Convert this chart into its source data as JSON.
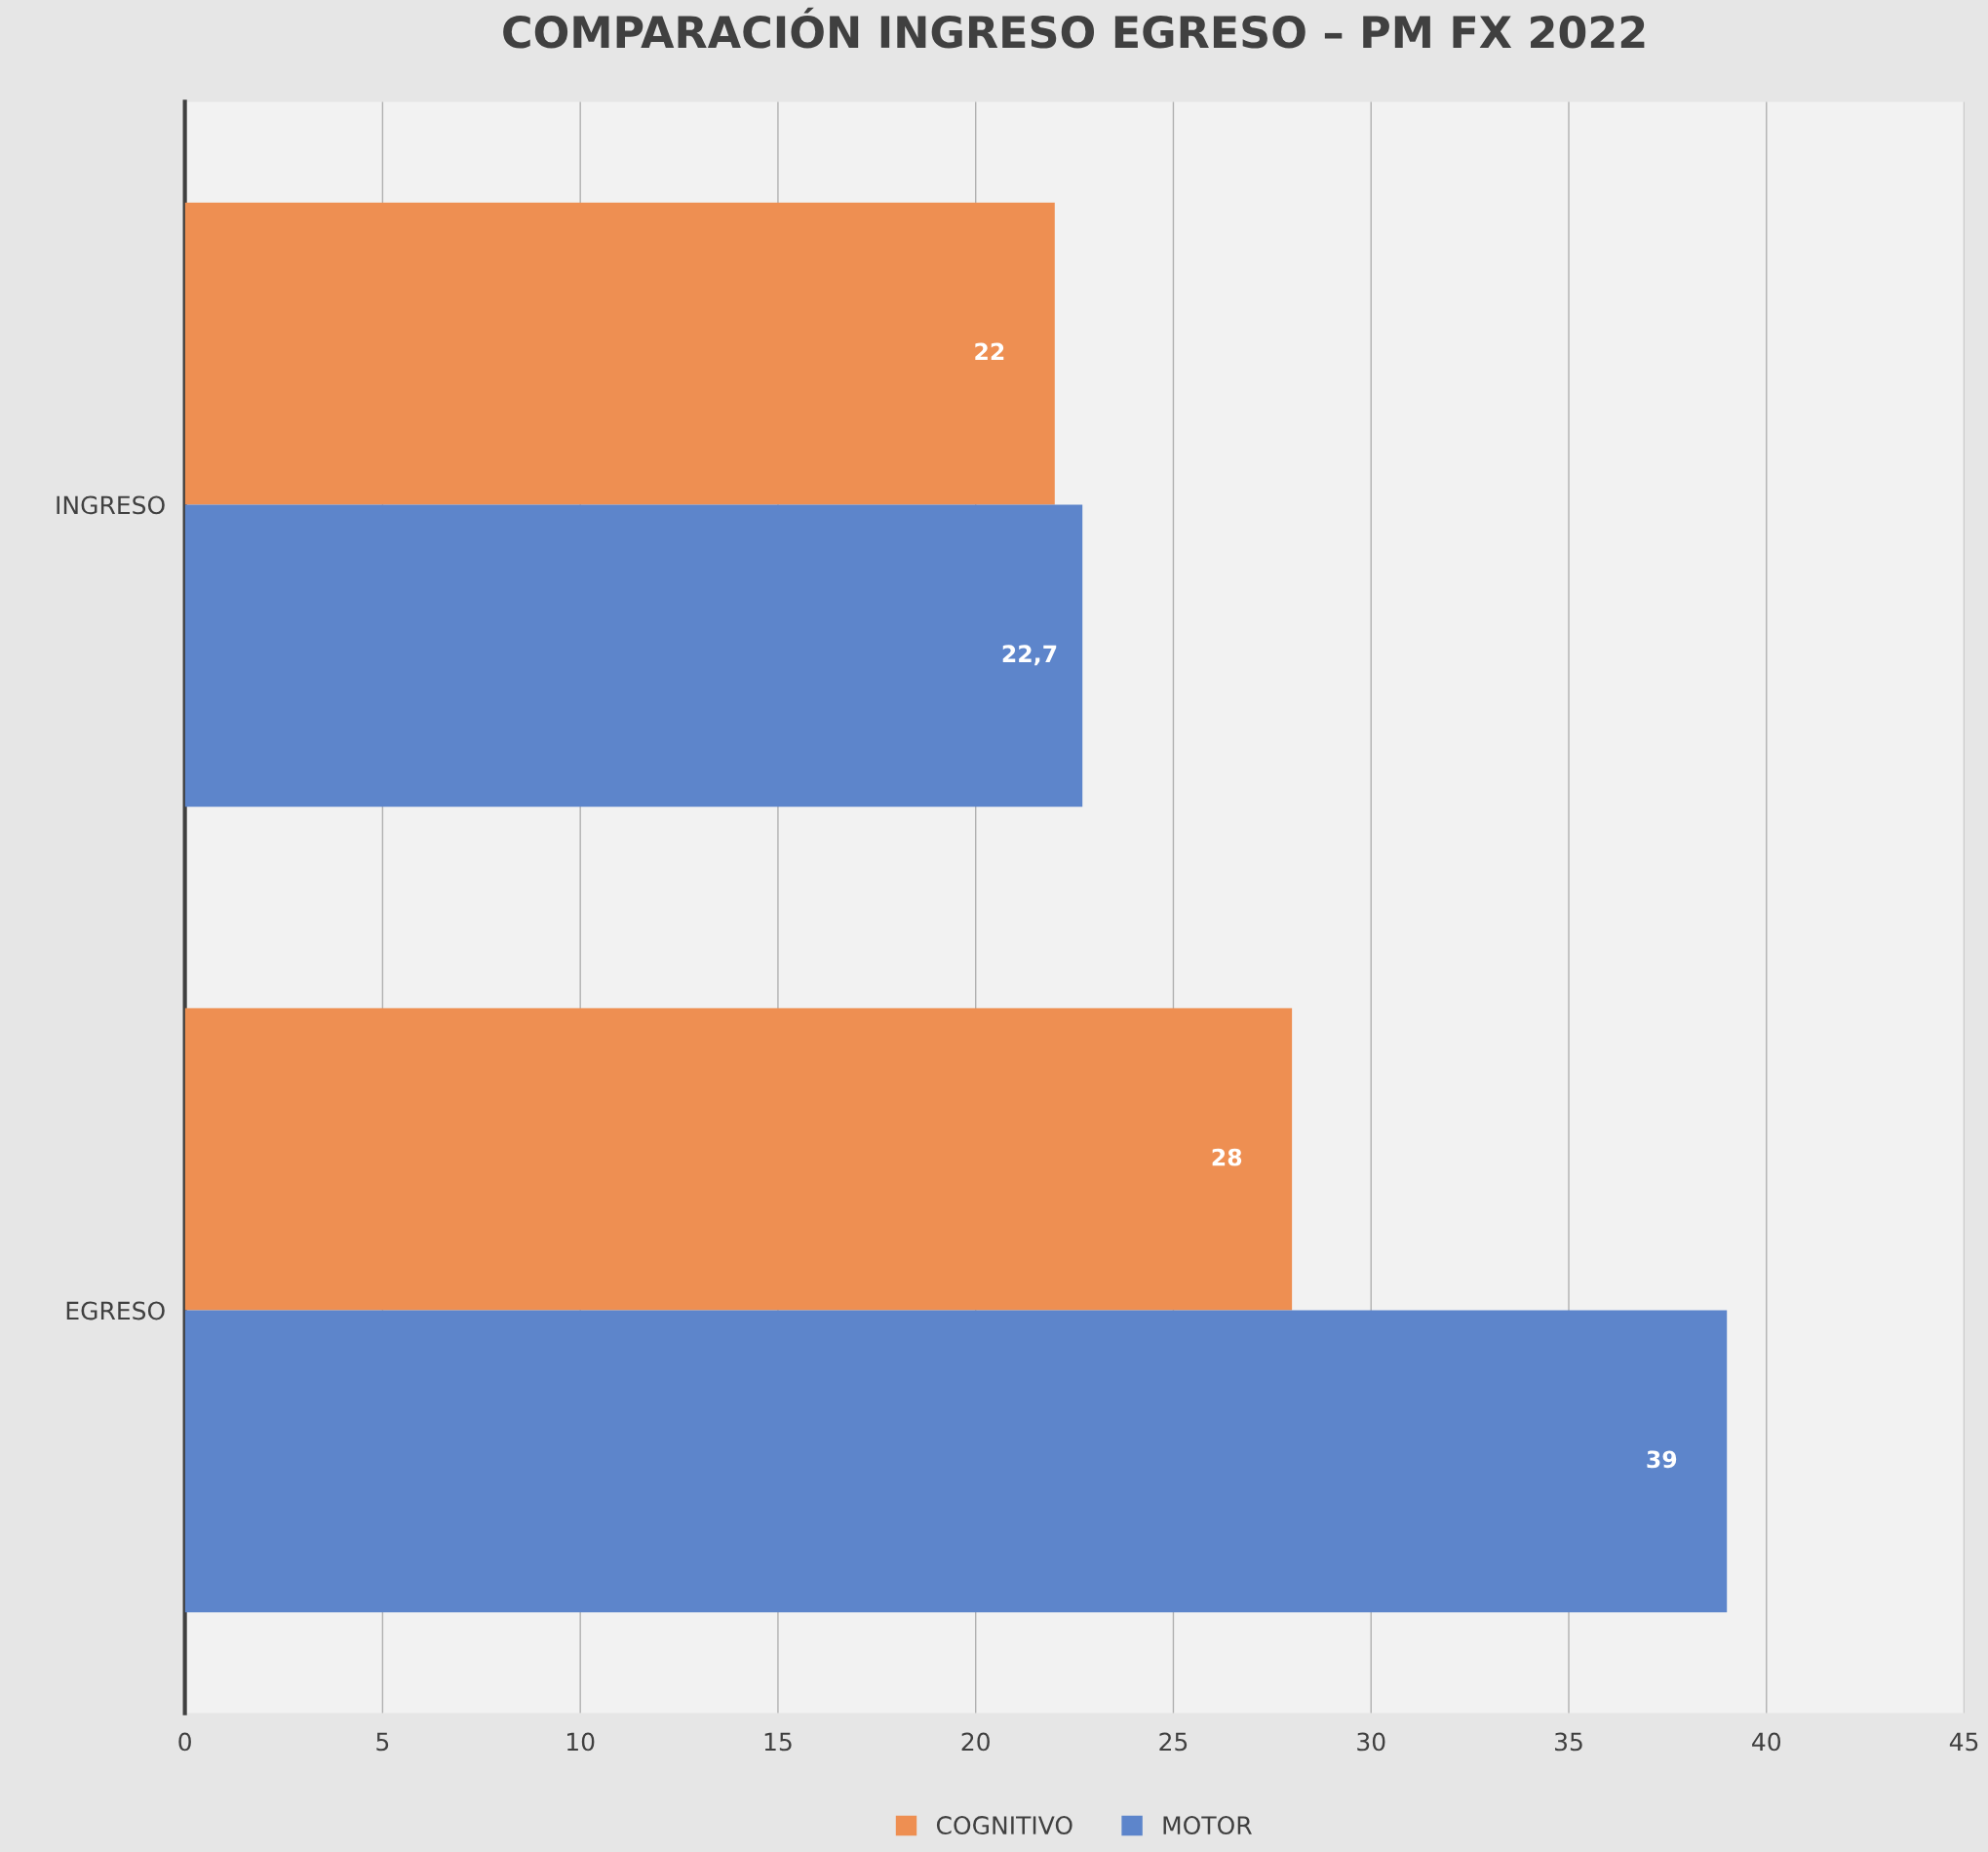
{
  "chart_data": {
    "type": "bar",
    "orientation": "horizontal",
    "title": "COMPARACIÓN INGRESO EGRESO – PM FX 2022",
    "categories": [
      "INGRESO",
      "EGRESO"
    ],
    "series": [
      {
        "name": "COGNITIVO",
        "color": "#ee8f52",
        "values": [
          22,
          28
        ],
        "value_labels": [
          "22",
          "28"
        ]
      },
      {
        "name": "MOTOR",
        "color": "#5d85cb",
        "values": [
          22.7,
          39
        ],
        "value_labels": [
          "22,7",
          "39"
        ]
      }
    ],
    "xlim": [
      0,
      45
    ],
    "xticks": [
      0,
      5,
      10,
      15,
      20,
      25,
      30,
      35,
      40,
      45
    ],
    "grid": "x",
    "legend": "bottom"
  }
}
